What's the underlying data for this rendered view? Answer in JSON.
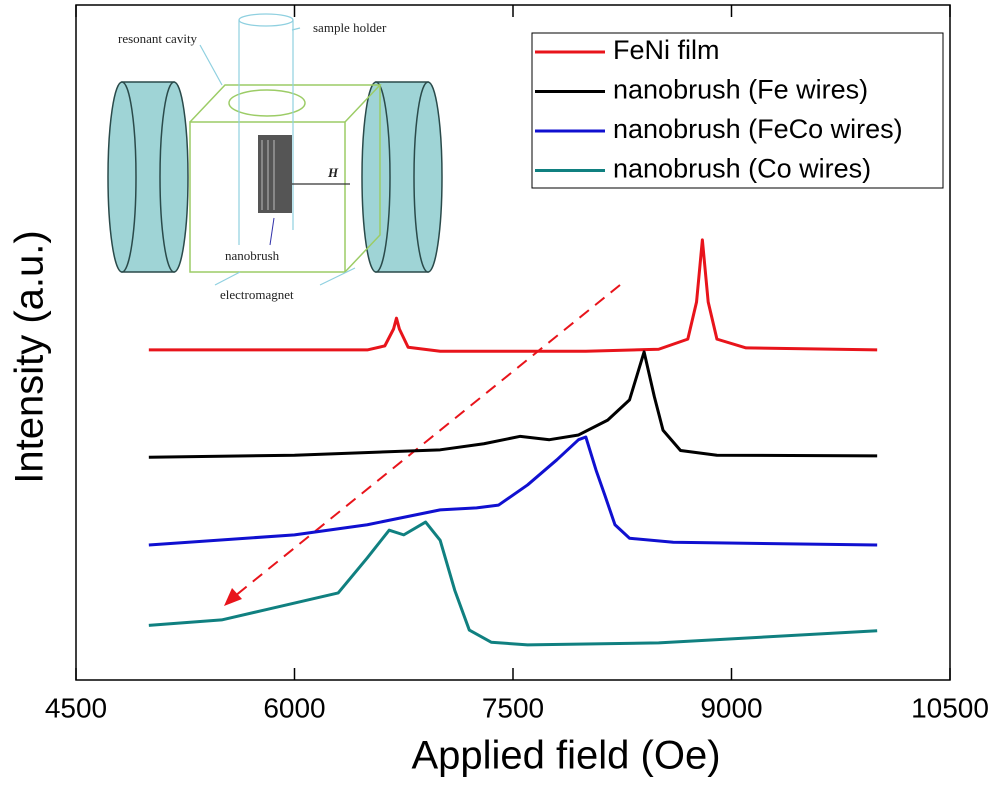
{
  "chart_data": {
    "type": "line",
    "xlabel": "Applied field (Oe)",
    "ylabel": "Intensity (a.u.)",
    "xlim": [
      4500,
      10500
    ],
    "xticks": [
      4500,
      6000,
      7500,
      9000,
      10500
    ],
    "ylim": [
      0,
      100
    ],
    "legend": "upper right",
    "series": [
      {
        "name": "FeNi film",
        "color": "#e8141b",
        "x": [
          5000,
          6500,
          6620,
          6680,
          6700,
          6720,
          6780,
          7000,
          8000,
          8500,
          8700,
          8760,
          8800,
          8840,
          8900,
          9100,
          10000
        ],
        "values": [
          48.9,
          48.9,
          49.5,
          52,
          53.6,
          52,
          49.3,
          48.7,
          48.7,
          49,
          50.5,
          56,
          65.2,
          56,
          50.5,
          49.2,
          48.9
        ]
      },
      {
        "name": "nanobrush (Fe wires)",
        "color": "#000000",
        "x": [
          5000,
          6000,
          7000,
          7300,
          7550,
          7750,
          7950,
          8150,
          8300,
          8400,
          8470,
          8530,
          8650,
          8900,
          10000
        ],
        "values": [
          33.0,
          33.3,
          34.1,
          35.0,
          36.1,
          35.6,
          36.3,
          38.5,
          41.5,
          48.6,
          42,
          37,
          34.0,
          33.3,
          33.2
        ]
      },
      {
        "name": "nanobrush (FeCo wires)",
        "color": "#1010d0",
        "x": [
          5000,
          6000,
          6500,
          7000,
          7250,
          7400,
          7600,
          7800,
          7950,
          8000,
          8070,
          8130,
          8200,
          8300,
          8600,
          10000
        ],
        "values": [
          20.0,
          21.5,
          23,
          25.2,
          25.5,
          25.9,
          28.9,
          32.6,
          35.6,
          36.0,
          31.1,
          27.4,
          23,
          21.0,
          20.4,
          20.0
        ]
      },
      {
        "name": "nanobrush (Co wires)",
        "color": "#108080",
        "x": [
          5000,
          5500,
          5800,
          6300,
          6500,
          6650,
          6750,
          6900,
          7000,
          7100,
          7200,
          7350,
          7600,
          8500,
          10000
        ],
        "values": [
          8.1,
          8.9,
          10.4,
          12.9,
          18.1,
          22.2,
          21.5,
          23.4,
          20.7,
          13.3,
          7.4,
          5.6,
          5.2,
          5.5,
          7.3
        ]
      }
    ]
  },
  "inset": {
    "labels": [
      "resonant cavity",
      "sample holder",
      "H",
      "nanobrush",
      "electromagnet"
    ]
  }
}
